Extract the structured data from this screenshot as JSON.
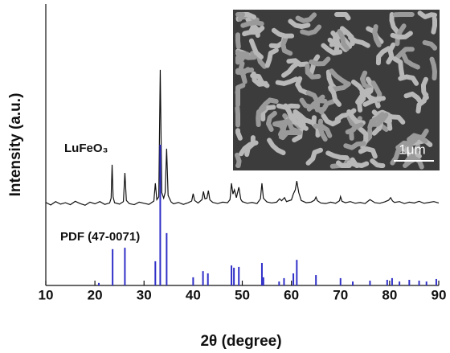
{
  "chart_data": {
    "type": "xrd",
    "x_label": "2θ (degree)",
    "y_label": "Intensity (a.u.)",
    "xlim": [
      10,
      90
    ],
    "xticks": [
      10,
      20,
      30,
      40,
      50,
      60,
      70,
      80,
      90
    ],
    "ylim": [
      0,
      100
    ],
    "series": [
      {
        "name": "LuFeO₃",
        "type": "line",
        "color": "#111111",
        "x": [
          10,
          11,
          12,
          13,
          14,
          15,
          16,
          17,
          18,
          19,
          20,
          21,
          22,
          23,
          23.3,
          23.5,
          23.7,
          24,
          25,
          25.8,
          26.1,
          26.4,
          27,
          28,
          29,
          30,
          31,
          32,
          32.3,
          32.6,
          33,
          33.3,
          33.6,
          34,
          34.3,
          34.6,
          34.9,
          35.5,
          36,
          37,
          38,
          39,
          39.7,
          40,
          40.3,
          41,
          41.8,
          42.1,
          42.4,
          42.8,
          43.1,
          43.4,
          44,
          45,
          46,
          47,
          47.5,
          47.8,
          48.1,
          48.4,
          48.8,
          49.3,
          49.7,
          50,
          51,
          52,
          53,
          53.7,
          54,
          54.3,
          55,
          56,
          57,
          57.6,
          58,
          58.6,
          59,
          60,
          60.4,
          60.8,
          61.1,
          61.5,
          62,
          63,
          64,
          64.7,
          65,
          65.3,
          66,
          67,
          68,
          69,
          69.8,
          70,
          70.3,
          71,
          72,
          73,
          74,
          75,
          76,
          77,
          78,
          79,
          79.8,
          80.2,
          80.6,
          81,
          82,
          83,
          84,
          85,
          86,
          87,
          88,
          89,
          90
        ],
        "values": [
          29.5,
          28.6,
          29.8,
          28.9,
          29.4,
          28.7,
          29.9,
          29.1,
          28.5,
          29.6,
          29.0,
          29.8,
          28.8,
          29.3,
          31,
          42.9,
          31.5,
          29.4,
          28.9,
          29.8,
          40,
          30.2,
          29.1,
          28.7,
          29.6,
          29.2,
          28.8,
          30,
          36.3,
          30.5,
          31.5,
          76.6,
          33,
          31,
          33,
          48.6,
          32,
          29.7,
          29,
          29.5,
          28.8,
          29.4,
          30,
          32.6,
          30.2,
          29.3,
          30.5,
          33.4,
          30.8,
          31,
          33.7,
          30.4,
          29.5,
          29.1,
          29.6,
          29.4,
          30.5,
          36.3,
          32.5,
          34,
          31.2,
          34.9,
          30.6,
          29.8,
          29.2,
          29.5,
          29.1,
          30.8,
          36.3,
          31,
          29.7,
          29.3,
          29.6,
          30.8,
          30.1,
          31.2,
          29.8,
          30.4,
          32.5,
          34,
          37.1,
          33,
          30.2,
          29.4,
          29.6,
          30.3,
          31.4,
          30.1,
          29.3,
          29.1,
          29.6,
          29.2,
          30.1,
          31.6,
          29.9,
          29.4,
          29.8,
          29.2,
          29.5,
          29.1,
          30.5,
          29.4,
          29.2,
          29.7,
          30.3,
          31.2,
          30,
          29.5,
          29.8,
          29.1,
          29.6,
          29.3,
          29.9,
          29.2,
          29.5,
          29.8,
          29.3
        ]
      },
      {
        "name": "PDF (47-0071)",
        "type": "stem",
        "color": "#3030c8",
        "x": [
          20.8,
          23.6,
          26.1,
          32.3,
          33.3,
          34.6,
          40,
          42,
          43,
          47.8,
          48.3,
          49.3,
          54,
          54.3,
          57.5,
          58.5,
          60.4,
          61.1,
          65,
          70,
          72.5,
          76,
          79.5,
          80.5,
          82,
          84,
          86,
          87.5,
          89.5
        ],
        "values": [
          0.9,
          12.9,
          13.4,
          8.6,
          50,
          18.6,
          2.9,
          5.1,
          4.3,
          7.1,
          6.3,
          6.6,
          8,
          2.9,
          1.4,
          2.6,
          4.3,
          9.1,
          3.7,
          2.6,
          1.4,
          1.7,
          2,
          2.6,
          1.4,
          2,
          1.7,
          1.4,
          2.3
        ]
      }
    ],
    "inset": {
      "scale_label": "1μm"
    }
  }
}
